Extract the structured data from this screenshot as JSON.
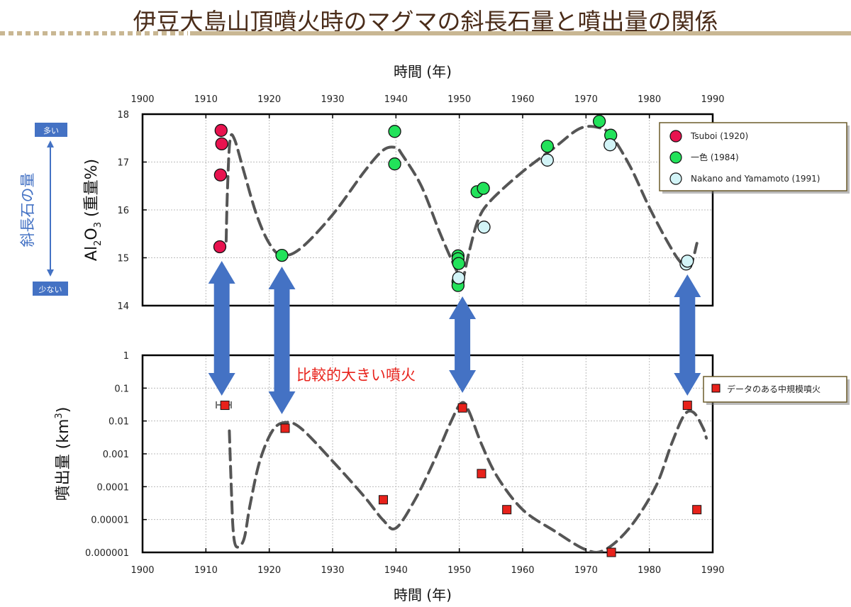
{
  "page": {
    "title": "伊豆大島山頂噴火時のマグマの斜長石量と噴出量の関係"
  },
  "side_indicator": {
    "label": "斜長石の量",
    "top_badge": "多い",
    "bottom_badge": "少ない",
    "color": "#4472c4"
  },
  "annotation": {
    "text": "比較的大きい噴火",
    "color": "#e8221b",
    "arrow_color": "#4472c4",
    "arrow_years": [
      1912.5,
      1922,
      1950.5,
      1986
    ]
  },
  "chart_data": [
    {
      "type": "scatter",
      "title": "",
      "xlabel": "時間 (年)",
      "ylabel": "Al2O3 (重量%)",
      "ylabel_parts": [
        "Al",
        "2",
        "O",
        "3",
        " (重量%)"
      ],
      "xlim": [
        1900,
        1990
      ],
      "ylim": [
        14,
        18
      ],
      "xticks": [
        1900,
        1910,
        1920,
        1930,
        1940,
        1950,
        1960,
        1970,
        1980,
        1990
      ],
      "yticks": [
        14,
        15,
        16,
        17,
        18
      ],
      "grid": true,
      "legend_position": "top-right",
      "series": [
        {
          "name": "Tsuboi (1920)",
          "color": "#e8134f",
          "points": [
            {
              "x": 1912.2,
              "y": 15.23
            },
            {
              "x": 1912.3,
              "y": 16.73
            },
            {
              "x": 1912.5,
              "y": 17.38
            },
            {
              "x": 1912.4,
              "y": 17.66
            }
          ]
        },
        {
          "name": "一色 (1984)",
          "color": "#22e25a",
          "points": [
            {
              "x": 1922.0,
              "y": 15.05
            },
            {
              "x": 1939.8,
              "y": 17.64
            },
            {
              "x": 1939.8,
              "y": 16.96
            },
            {
              "x": 1949.8,
              "y": 15.04
            },
            {
              "x": 1949.8,
              "y": 14.98
            },
            {
              "x": 1949.9,
              "y": 14.88
            },
            {
              "x": 1949.8,
              "y": 14.5
            },
            {
              "x": 1949.8,
              "y": 14.42
            },
            {
              "x": 1952.8,
              "y": 16.38
            },
            {
              "x": 1953.8,
              "y": 16.45
            },
            {
              "x": 1963.9,
              "y": 17.33
            },
            {
              "x": 1972.1,
              "y": 17.85
            },
            {
              "x": 1973.9,
              "y": 17.56
            }
          ]
        },
        {
          "name": "Nakano and Yamamoto (1991)",
          "color": "#d2f4f7",
          "points": [
            {
              "x": 1949.9,
              "y": 14.58
            },
            {
              "x": 1953.9,
              "y": 15.64
            },
            {
              "x": 1963.9,
              "y": 17.04
            },
            {
              "x": 1973.8,
              "y": 17.36
            },
            {
              "x": 1985.8,
              "y": 14.87
            },
            {
              "x": 1986.0,
              "y": 14.93
            }
          ]
        }
      ],
      "trend_curve": [
        [
          1913.2,
          15.35
        ],
        [
          1913.4,
          16.4
        ],
        [
          1913.8,
          17.45
        ],
        [
          1914.5,
          17.48
        ],
        [
          1916,
          16.8
        ],
        [
          1918,
          15.9
        ],
        [
          1920,
          15.3
        ],
        [
          1922,
          15.05
        ],
        [
          1925,
          15.2
        ],
        [
          1930,
          15.9
        ],
        [
          1935,
          16.8
        ],
        [
          1938,
          17.25
        ],
        [
          1940,
          17.3
        ],
        [
          1941,
          17.15
        ],
        [
          1944,
          16.5
        ],
        [
          1947,
          15.5
        ],
        [
          1949.5,
          14.75
        ],
        [
          1950.5,
          14.55
        ],
        [
          1951.5,
          15.1
        ],
        [
          1953,
          15.8
        ],
        [
          1955,
          16.2
        ],
        [
          1960,
          16.8
        ],
        [
          1965,
          17.3
        ],
        [
          1969,
          17.7
        ],
        [
          1972,
          17.72
        ],
        [
          1974,
          17.55
        ],
        [
          1977,
          16.9
        ],
        [
          1980,
          16.05
        ],
        [
          1983,
          15.3
        ],
        [
          1985,
          14.9
        ],
        [
          1986.5,
          14.85
        ],
        [
          1987.5,
          15.3
        ]
      ]
    },
    {
      "type": "scatter",
      "title": "",
      "xlabel": "時間 (年)",
      "ylabel": "噴出量 (km3)",
      "ylabel_parts": [
        "噴出量 (km",
        "3",
        ")"
      ],
      "xlim": [
        1900,
        1990
      ],
      "ylim": [
        1e-06,
        1
      ],
      "yscale": "log",
      "xticks": [
        1900,
        1910,
        1920,
        1930,
        1940,
        1950,
        1960,
        1970,
        1980,
        1990
      ],
      "yticks": [
        1e-06,
        1e-05,
        0.0001,
        0.001,
        0.01,
        0.1,
        1
      ],
      "ytick_labels": [
        "0.000001",
        "0.00001",
        "0.0001",
        "0.001",
        "0.01",
        "0.1",
        "1"
      ],
      "grid": true,
      "legend_position": "top-right",
      "series": [
        {
          "name": "データのある中規模噴火",
          "color": "#e8221b",
          "points": [
            {
              "x": 1913.0,
              "y": 0.03
            },
            {
              "x": 1922.5,
              "y": 0.006
            },
            {
              "x": 1938.0,
              "y": 4e-05
            },
            {
              "x": 1950.5,
              "y": 0.025
            },
            {
              "x": 1953.5,
              "y": 0.00025
            },
            {
              "x": 1957.5,
              "y": 2e-05
            },
            {
              "x": 1974.0,
              "y": 1e-06
            },
            {
              "x": 1986.0,
              "y": 0.03
            },
            {
              "x": 1987.5,
              "y": 2e-05
            }
          ]
        }
      ],
      "trend_curve": [
        [
          1913.7,
          0.005
        ],
        [
          1914.0,
          0.0001
        ],
        [
          1914.3,
          5e-06
        ],
        [
          1914.8,
          1.5e-06
        ],
        [
          1916,
          2.5e-06
        ],
        [
          1917,
          3e-05
        ],
        [
          1918.5,
          0.0006
        ],
        [
          1920.5,
          0.005
        ],
        [
          1922.5,
          0.009
        ],
        [
          1925,
          0.006
        ],
        [
          1930,
          0.0006
        ],
        [
          1935,
          5e-05
        ],
        [
          1938,
          9.5e-06
        ],
        [
          1940,
          5.5e-06
        ],
        [
          1943,
          4e-05
        ],
        [
          1946,
          0.0006
        ],
        [
          1948.5,
          0.008
        ],
        [
          1950.3,
          0.035
        ],
        [
          1951.5,
          0.02
        ],
        [
          1953.5,
          0.002
        ],
        [
          1956,
          0.0002
        ],
        [
          1960,
          2e-05
        ],
        [
          1965,
          4.5e-06
        ],
        [
          1970,
          1.2e-06
        ],
        [
          1973,
          1.2e-06
        ],
        [
          1977,
          6e-06
        ],
        [
          1981,
          0.0001
        ],
        [
          1983.5,
          0.002
        ],
        [
          1985.5,
          0.015
        ],
        [
          1987,
          0.018
        ],
        [
          1988.5,
          0.006
        ],
        [
          1989,
          0.003
        ]
      ]
    }
  ]
}
